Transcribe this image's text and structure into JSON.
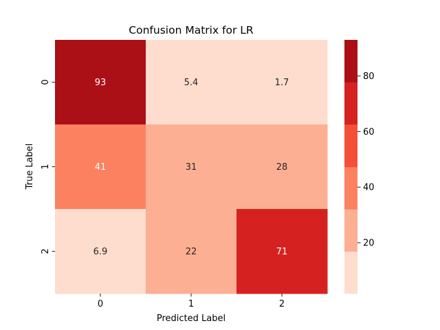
{
  "chart_data": {
    "type": "heatmap",
    "title": "Confusion Matrix for LR",
    "xlabel": "Predicted Label",
    "ylabel": "True Label",
    "x_categories": [
      "0",
      "1",
      "2"
    ],
    "y_categories": [
      "0",
      "1",
      "2"
    ],
    "values": [
      [
        93,
        5.4,
        1.7
      ],
      [
        41,
        31,
        28
      ],
      [
        6.9,
        22,
        71
      ]
    ],
    "annotations": [
      [
        "93",
        "5.4",
        "1.7"
      ],
      [
        "41",
        "31",
        "28"
      ],
      [
        "6.9",
        "22",
        "71"
      ]
    ],
    "colorbar": {
      "vmin": 1.7,
      "vmax": 93,
      "ticks": [
        20,
        40,
        60,
        80
      ],
      "tick_labels": [
        "20",
        "40",
        "60",
        "80"
      ],
      "bin_edges": [
        1.7,
        16.9,
        32.1,
        47.3,
        62.6,
        77.8,
        93
      ],
      "colors": [
        "#fedcce",
        "#fcaf93",
        "#fc8161",
        "#f44f39",
        "#d52221",
        "#aa1016"
      ]
    },
    "grid": false
  }
}
